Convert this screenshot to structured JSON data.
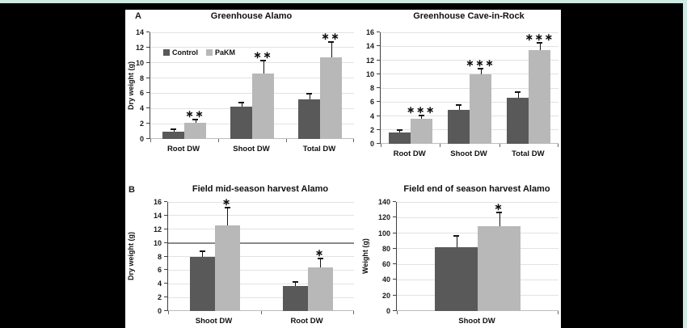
{
  "colors": {
    "background": "#000000",
    "paper": "#ffffff",
    "accent_strip": "#cfeae3",
    "control_bar": "#595959",
    "pakm_bar": "#b8b8b8"
  },
  "panels": {
    "a": "A",
    "b": "B"
  },
  "chart_data": [
    {
      "type": "bar",
      "title": "Greenhouse Alamo",
      "ylabel": "Dry weight (g)",
      "ylim": [
        0,
        14
      ],
      "ystep": 2,
      "grid": true,
      "legend": true,
      "legend_position": "upper-left",
      "categories": [
        "Root DW",
        "Shoot DW",
        "Total DW"
      ],
      "series": [
        {
          "name": "Control",
          "color": "#595959",
          "values": [
            1.0,
            4.2,
            5.2
          ],
          "errors": [
            0.2,
            0.5,
            0.6
          ]
        },
        {
          "name": "PaKM",
          "color": "#b8b8b8",
          "values": [
            2.1,
            8.6,
            10.7
          ],
          "errors": [
            0.3,
            1.6,
            1.9
          ]
        }
      ],
      "significance": [
        "∗∗",
        "∗∗",
        "∗∗"
      ]
    },
    {
      "type": "bar",
      "title": "Greenhouse Cave-in-Rock",
      "ylabel": "",
      "ylim": [
        0,
        16
      ],
      "ystep": 2,
      "grid": true,
      "legend": false,
      "categories": [
        "Root DW",
        "Shoot DW",
        "Total DW"
      ],
      "series": [
        {
          "name": "Control",
          "color": "#595959",
          "values": [
            1.6,
            4.9,
            6.6
          ],
          "errors": [
            0.2,
            0.55,
            0.7
          ]
        },
        {
          "name": "PaKM",
          "color": "#b8b8b8",
          "values": [
            3.6,
            10.0,
            13.5
          ],
          "errors": [
            0.35,
            0.7,
            0.9
          ]
        }
      ],
      "significance": [
        "∗∗∗",
        "∗∗∗",
        "∗∗∗"
      ]
    },
    {
      "type": "bar",
      "title": "Field mid-season harvest Alamo",
      "ylabel": "Dry weight (g)",
      "ylim": [
        0,
        16
      ],
      "ystep": 2,
      "grid": true,
      "legend": false,
      "emphasized_gridline": 10,
      "categories": [
        "Shoot DW",
        "Root DW"
      ],
      "series": [
        {
          "name": "Control",
          "color": "#595959",
          "values": [
            7.9,
            3.7
          ],
          "errors": [
            0.8,
            0.5
          ]
        },
        {
          "name": "PaKM",
          "color": "#b8b8b8",
          "values": [
            12.6,
            6.4
          ],
          "errors": [
            2.5,
            1.2
          ]
        }
      ],
      "significance": [
        "∗",
        "∗"
      ]
    },
    {
      "type": "bar",
      "title": "Field end of season harvest Alamo",
      "ylabel": "Weight (g)",
      "ylim": [
        0,
        140
      ],
      "ystep": 20,
      "grid": true,
      "legend": false,
      "categories": [
        "Shoot DW"
      ],
      "series": [
        {
          "name": "Control",
          "color": "#595959",
          "values": [
            82
          ],
          "errors": [
            13
          ]
        },
        {
          "name": "PaKM",
          "color": "#b8b8b8",
          "values": [
            109
          ],
          "errors": [
            17
          ]
        }
      ],
      "significance": [
        "∗"
      ]
    }
  ]
}
